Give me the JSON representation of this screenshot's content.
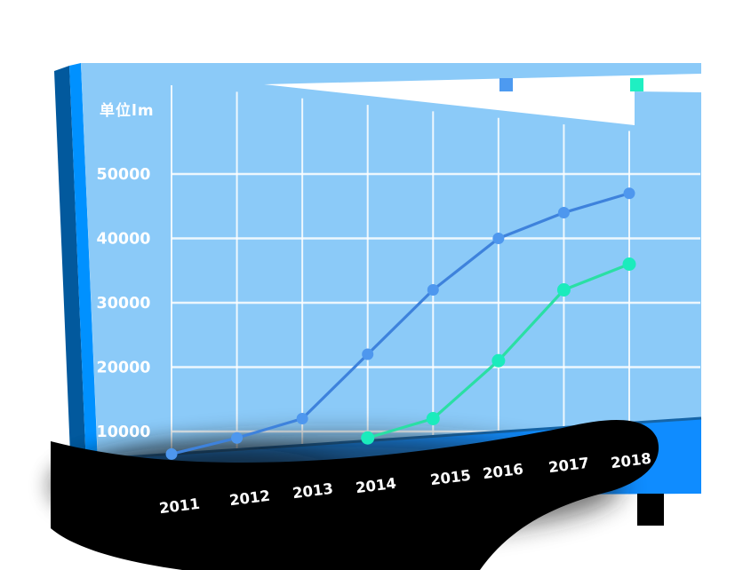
{
  "page": {
    "background": "#ffffff"
  },
  "unit_label": "单位lm",
  "decor": {
    "panel_fill": "#8BCAF8",
    "left_edge_dark": "#02599D",
    "left_edge_bright": "#0091FF",
    "floor_fill": "#0F8CFF",
    "floor_seam": "#1565A8",
    "swoosh_color": "#000000",
    "wedge_color": "#FFFFFF",
    "grid_color": "#FFFFFF",
    "label_color": "#FFFFFF"
  },
  "legend": [
    {
      "label": "",
      "color": "#4D9AF0"
    },
    {
      "label": "",
      "color": "#1FEFC2"
    }
  ],
  "chart_data": {
    "type": "line",
    "categories": [
      "2011",
      "2012",
      "2013",
      "2014",
      "2015",
      "2016",
      "2017",
      "2018"
    ],
    "series": [
      {
        "name": "series-blue",
        "color": "#3E82DC",
        "dot_color": "#4E97EE",
        "dot_radius": 6.5,
        "values": [
          6500,
          9000,
          12000,
          22000,
          32000,
          40000,
          44000,
          47000
        ]
      },
      {
        "name": "series-teal",
        "color": "#2ADFA4",
        "dot_color": "#1BEBBC",
        "dot_radius": 7.5,
        "values": [
          null,
          null,
          null,
          9000,
          12000,
          21000,
          32000,
          36000
        ]
      }
    ],
    "y_ticks": [
      10000,
      20000,
      30000,
      40000,
      50000
    ],
    "y_tick_labels": [
      "10000",
      "20000",
      "30000",
      "40000",
      "50000"
    ],
    "ylabel": "单位lm",
    "xlabel": "",
    "title": "",
    "ylim": [
      0,
      55000
    ],
    "grid": true,
    "legend_position": "top-right"
  }
}
